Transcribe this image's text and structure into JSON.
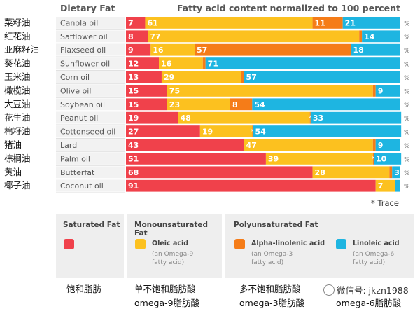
{
  "chart_data": {
    "type": "bar",
    "stacked": true,
    "orientation": "horizontal",
    "header_left": "Dietary Fat",
    "title": "Fatty acid content normalized to 100 percent",
    "percent_symbol": "%",
    "categories": [
      "Canola oil",
      "Safflower oil",
      "Flaxseed oil",
      "Sunflower oil",
      "Corn oil",
      "Olive oil",
      "Soybean oil",
      "Peanut oil",
      "Cottonseed oil",
      "Lard",
      "Palm oil",
      "Butterfat",
      "Coconut oil"
    ],
    "categories_cn": [
      "菜籽油",
      "红花油",
      "亚麻籽油",
      "葵花油",
      "玉米油",
      "橄榄油",
      "大豆油",
      "花生油",
      "棉籽油",
      "猪油",
      "棕榈油",
      "黄油",
      "椰子油"
    ],
    "series": [
      {
        "name": "Saturated Fat",
        "color": "#f0414b",
        "values": [
          7,
          8,
          9,
          12,
          13,
          15,
          15,
          19,
          27,
          43,
          51,
          68,
          91
        ]
      },
      {
        "name": "Oleic acid",
        "color": "#fcc11f",
        "values": [
          61,
          77,
          16,
          16,
          29,
          75,
          23,
          48,
          19,
          47,
          39,
          28,
          7
        ]
      },
      {
        "name": "Alpha-linolenic acid",
        "color": "#f57c18",
        "values": [
          11,
          1,
          57,
          1,
          1,
          1,
          8,
          0.3,
          0.3,
          1,
          0.3,
          1,
          0
        ]
      },
      {
        "name": "Linoleic acid",
        "color": "#1eb5e1",
        "values": [
          21,
          14,
          18,
          71,
          57,
          9,
          54,
          33,
          54,
          9,
          10,
          3,
          2
        ]
      }
    ],
    "labels": [
      [
        "7",
        "61",
        "11",
        "21"
      ],
      [
        "8",
        "77",
        "1",
        "14"
      ],
      [
        "9",
        "16",
        "57",
        "18"
      ],
      [
        "12",
        "16",
        "1",
        "71"
      ],
      [
        "13",
        "29",
        "1",
        "57"
      ],
      [
        "15",
        "75",
        "1",
        "9"
      ],
      [
        "15",
        "23",
        "8",
        "54"
      ],
      [
        "19",
        "48",
        "*",
        "33"
      ],
      [
        "27",
        "19",
        "*",
        "54"
      ],
      [
        "43",
        "47",
        "1",
        "9"
      ],
      [
        "51",
        "39",
        "*",
        "10"
      ],
      [
        "68",
        "28",
        "1",
        "3"
      ],
      [
        "91",
        "7",
        "",
        ""
      ]
    ],
    "trace_note": "* Trace",
    "xlim": [
      0,
      100
    ]
  },
  "legend": {
    "saturated_title": "Saturated Fat",
    "mono_title": "Monounsaturated Fat",
    "poly_title": "Polyunsaturated Fat",
    "oleic_label": "Oleic acid",
    "oleic_sub1": "(an Omega-9",
    "oleic_sub2": "fatty acid)",
    "alpha_label": "Alpha-linolenic acid",
    "alpha_sub1": "(an Omega-3",
    "alpha_sub2": "fatty acid)",
    "linoleic_label": "Linoleic acid",
    "linoleic_sub1": "(an Omega-6",
    "linoleic_sub2": "fatty acid)"
  },
  "bottom_cn": {
    "saturated": "饱和脂肪",
    "mono_line1": "单不饱和脂肪酸",
    "mono_line2": "omega-9脂肪酸",
    "poly_line1": "多不饱和脂肪酸",
    "poly_line2": "omega-3脂肪酸",
    "omega6": "omega-6脂肪酸"
  },
  "watermark": "微信号: jkzn1988"
}
